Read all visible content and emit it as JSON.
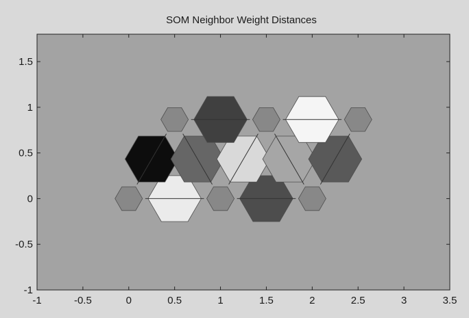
{
  "chart_data": {
    "type": "heatmap",
    "title": "SOM Neighbor Weight Distances",
    "xlabel": "",
    "ylabel": "",
    "xlim": [
      -1,
      3.5
    ],
    "ylim": [
      -1,
      1.8
    ],
    "xticks": [
      "-1",
      "-0.5",
      "0",
      "0.5",
      "1",
      "1.5",
      "2",
      "2.5",
      "3",
      "3.5"
    ],
    "yticks": [
      "-1",
      "-0.5",
      "0",
      "0.5",
      "1",
      "1.5"
    ],
    "grid": false,
    "neurons": [
      {
        "x": 0,
        "y": 0
      },
      {
        "x": 1,
        "y": 0
      },
      {
        "x": 2,
        "y": 0
      },
      {
        "x": 0.5,
        "y": 0.866
      },
      {
        "x": 1.5,
        "y": 0.866
      },
      {
        "x": 2.5,
        "y": 0.866
      }
    ],
    "neighbor_distances": [
      {
        "from": 0,
        "to": 1,
        "x": 0.5,
        "y": 0,
        "shade": 0.92
      },
      {
        "from": 1,
        "to": 2,
        "x": 1.5,
        "y": 0,
        "shade": 0.3
      },
      {
        "from": 0,
        "to": 3,
        "x": 0.25,
        "y": 0.433,
        "shade": 0.05
      },
      {
        "from": 1,
        "to": 3,
        "x": 0.75,
        "y": 0.433,
        "shade": 0.4
      },
      {
        "from": 1,
        "to": 4,
        "x": 1.25,
        "y": 0.433,
        "shade": 0.85
      },
      {
        "from": 2,
        "to": 4,
        "x": 1.75,
        "y": 0.433,
        "shade": 0.65
      },
      {
        "from": 2,
        "to": 5,
        "x": 2.25,
        "y": 0.433,
        "shade": 0.35
      },
      {
        "from": 3,
        "to": 4,
        "x": 1,
        "y": 0.866,
        "shade": 0.25
      },
      {
        "from": 4,
        "to": 5,
        "x": 2,
        "y": 0.866,
        "shade": 0.96
      }
    ],
    "colors": {
      "figure_bg": "#d9d9d9",
      "axes_bg": "#a3a3a3",
      "neuron_fill": "#888888",
      "hex_stroke": "#4d4d4d"
    }
  }
}
